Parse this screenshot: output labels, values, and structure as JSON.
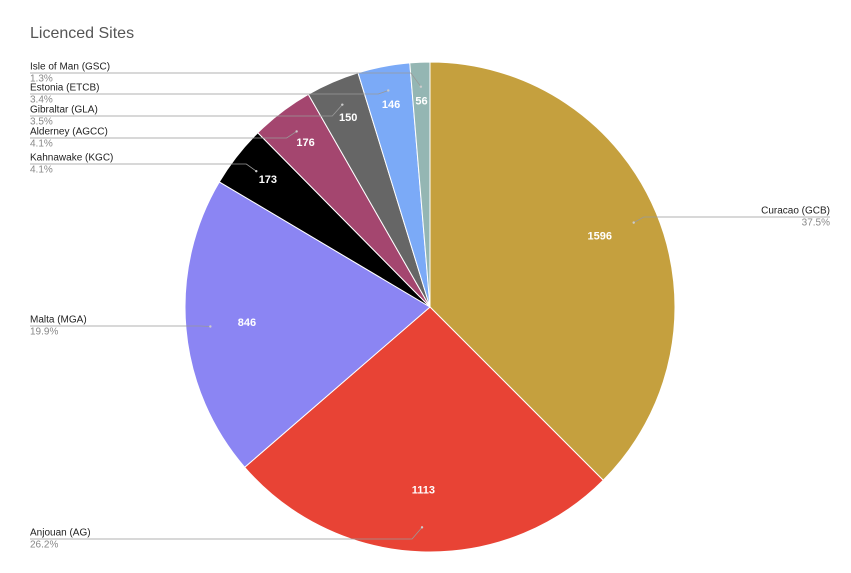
{
  "chart_data": {
    "type": "pie",
    "title": "Licenced Sites",
    "categories": [
      "Curacao (GCB)",
      "Anjouan (AG)",
      "Malta (MGA)",
      "Kahnawake (KGC)",
      "Alderney (AGCC)",
      "Gibraltar (GLA)",
      "Estonia (ETCB)",
      "Isle of Man (GSC)"
    ],
    "values": [
      1596,
      1113,
      846,
      173,
      176,
      150,
      146,
      56
    ],
    "percent_labels": [
      "37.5%",
      "26.2%",
      "19.9%",
      "4.1%",
      "4.1%",
      "3.5%",
      "3.4%",
      "1.3%"
    ],
    "colors": [
      "#c5a03e",
      "#e84335",
      "#8b85f3",
      "#000000",
      "#a4466f",
      "#666666",
      "#7baaf7",
      "#94b6b3"
    ]
  }
}
